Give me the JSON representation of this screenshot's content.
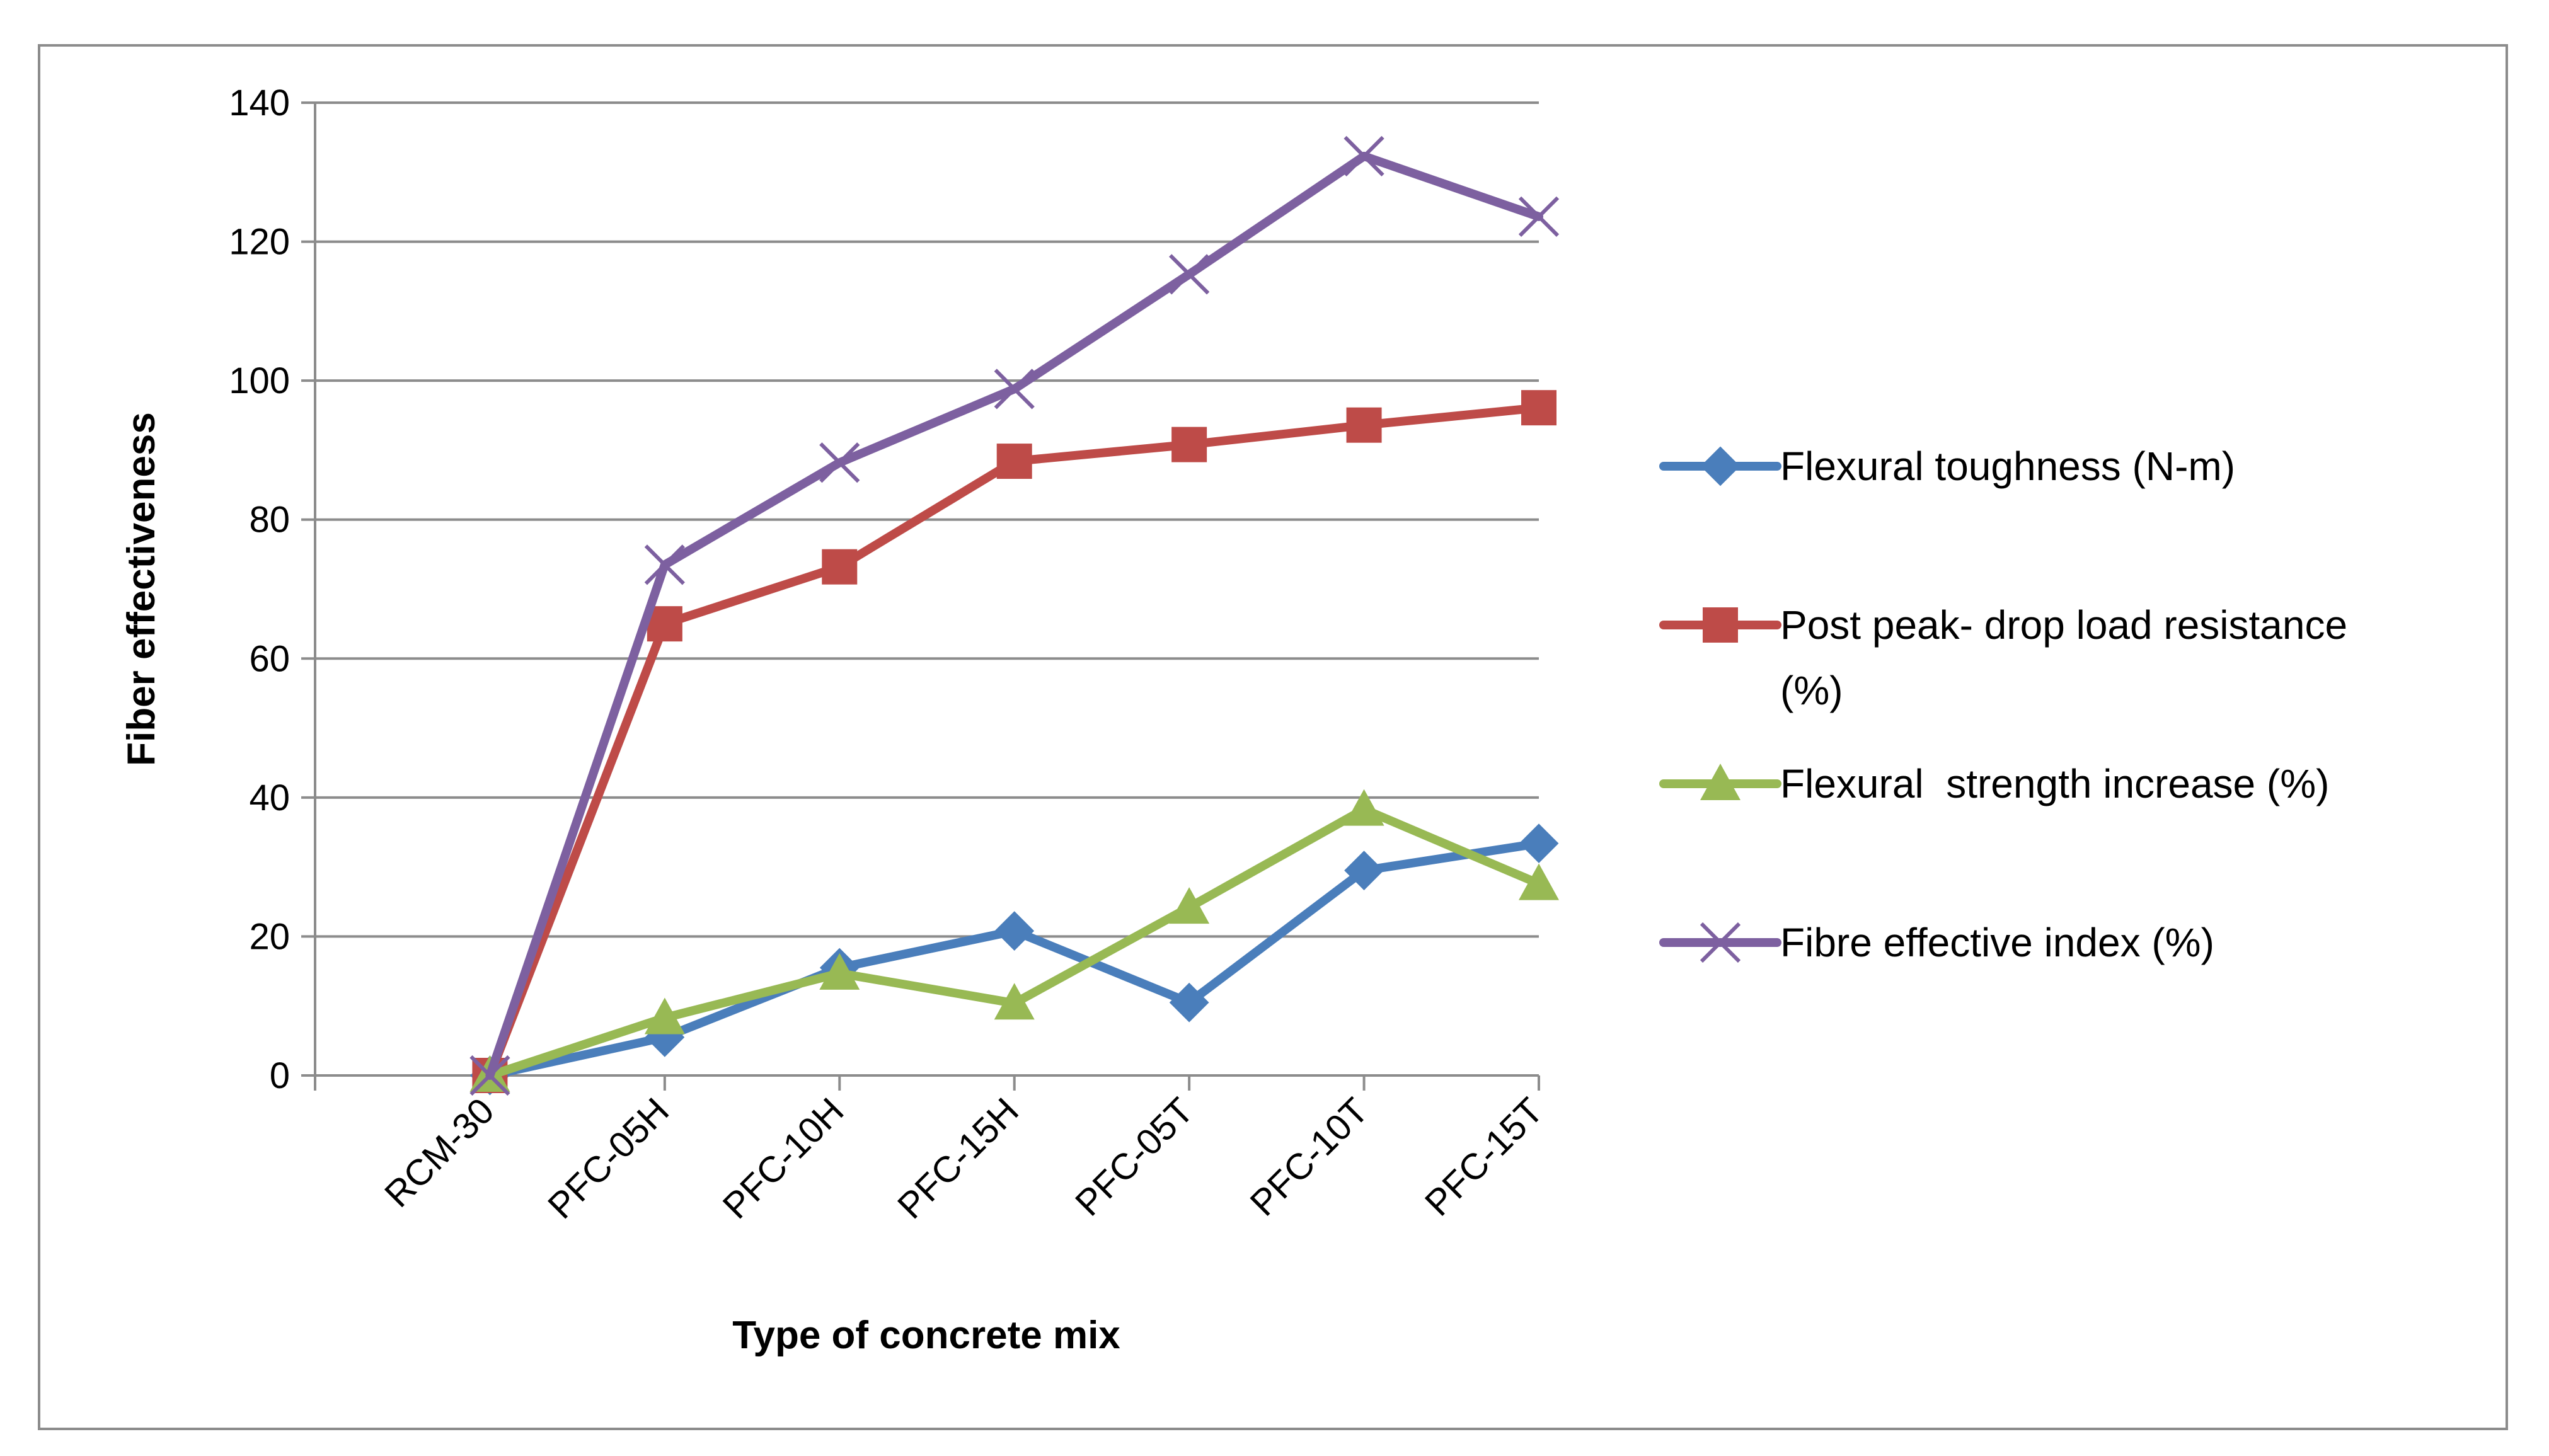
{
  "chart_data": {
    "type": "line",
    "xlabel": "Type of concrete mix",
    "ylabel": "Fiber effectiveness",
    "ylim": [
      0,
      140
    ],
    "yticks": [
      0,
      20,
      40,
      60,
      80,
      100,
      120,
      140
    ],
    "grid": "horizontal",
    "legend_position": "right",
    "categories": [
      "RCM-30",
      "PFC-05H",
      "PFC-10H",
      "PFC-15H",
      "PFC-05T",
      "PFC-10T",
      "PFC-15T"
    ],
    "series": [
      {
        "name": "Flexural toughness (N-m)",
        "color": "#4a7ebb",
        "marker": "diamond",
        "values": [
          0,
          5.5,
          15.5,
          20.8,
          10.5,
          29.5,
          33.4
        ]
      },
      {
        "name": "Post peak- drop load resistance (%)",
        "legend_lines": [
          "Post peak- drop load resistance",
          "(%)"
        ],
        "color": "#be4b48",
        "marker": "square",
        "values": [
          0,
          65,
          73.2,
          88.4,
          90.8,
          93.6,
          96.1
        ]
      },
      {
        "name": "Flexural  strength increase (%)",
        "color": "#98b954",
        "marker": "triangle",
        "values": [
          0,
          8.3,
          14.7,
          10.4,
          24.2,
          38.3,
          27.6
        ]
      },
      {
        "name": "Fibre effective index (%)",
        "color": "#7d60a0",
        "marker": "x",
        "values": [
          0,
          73.5,
          88.2,
          98.8,
          115.3,
          132.3,
          123.6
        ]
      }
    ]
  }
}
